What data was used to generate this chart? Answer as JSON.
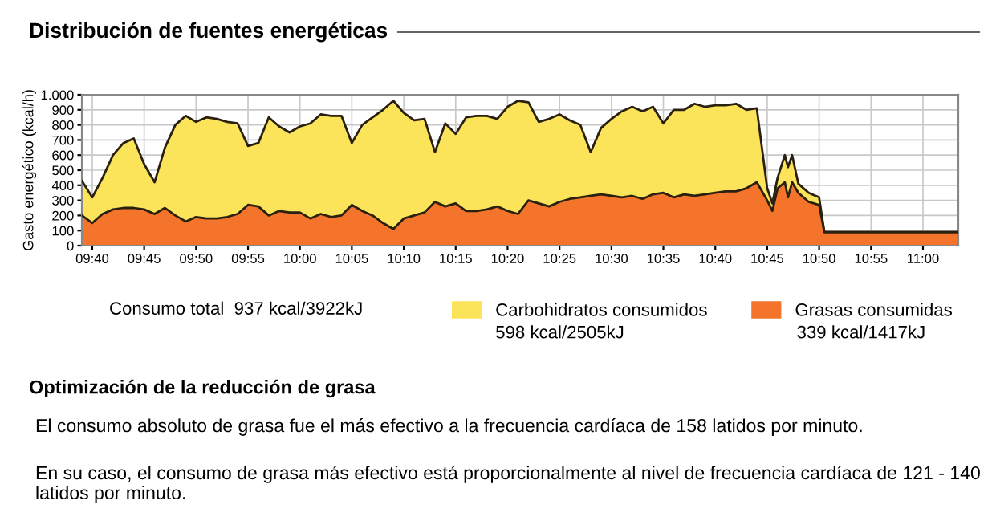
{
  "chart_data": {
    "type": "area",
    "stacked": true,
    "title": "Distribución de fuentes energéticas",
    "ylabel": "Gasto energético (kcal/h)",
    "x": [
      9.65,
      9.6667,
      9.6833,
      9.7,
      9.7167,
      9.7333,
      9.75,
      9.7667,
      9.7833,
      9.8,
      9.8167,
      9.8333,
      9.85,
      9.8667,
      9.8833,
      9.9,
      9.9167,
      9.9333,
      9.95,
      9.9667,
      9.9833,
      10.0,
      10.0167,
      10.0333,
      10.05,
      10.0667,
      10.0833,
      10.1,
      10.1167,
      10.1333,
      10.15,
      10.1667,
      10.1833,
      10.2,
      10.2167,
      10.2333,
      10.25,
      10.2667,
      10.2833,
      10.3,
      10.3167,
      10.3333,
      10.35,
      10.3667,
      10.3833,
      10.4,
      10.4167,
      10.4333,
      10.45,
      10.4667,
      10.4833,
      10.5,
      10.5167,
      10.5333,
      10.55,
      10.5667,
      10.5833,
      10.6,
      10.6167,
      10.6333,
      10.65,
      10.6667,
      10.6833,
      10.7,
      10.7167,
      10.7333,
      10.75,
      10.7583,
      10.7667,
      10.7783,
      10.7833,
      10.79,
      10.8,
      10.8167,
      10.8333,
      10.8417,
      10.85,
      11.0567
    ],
    "series": [
      {
        "name": "Grasas consumidas",
        "color": "#f4742b",
        "values": [
          200,
          150,
          210,
          240,
          250,
          250,
          240,
          210,
          250,
          200,
          160,
          190,
          180,
          180,
          190,
          210,
          270,
          260,
          200,
          230,
          220,
          220,
          180,
          210,
          190,
          200,
          270,
          230,
          200,
          150,
          110,
          180,
          200,
          220,
          290,
          260,
          280,
          230,
          230,
          240,
          260,
          230,
          210,
          300,
          280,
          260,
          290,
          310,
          320,
          330,
          340,
          330,
          320,
          330,
          310,
          340,
          350,
          320,
          340,
          330,
          340,
          350,
          360,
          360,
          380,
          420,
          300,
          230,
          380,
          420,
          320,
          420,
          350,
          290,
          270,
          90,
          90,
          90
        ]
      },
      {
        "name": "Carbohidratos consumidos",
        "color": "#fbe45a",
        "values": [
          230,
          170,
          240,
          360,
          430,
          460,
          300,
          210,
          400,
          600,
          700,
          630,
          670,
          660,
          630,
          600,
          390,
          420,
          650,
          560,
          530,
          570,
          630,
          660,
          670,
          660,
          410,
          570,
          650,
          750,
          850,
          700,
          630,
          620,
          330,
          550,
          460,
          620,
          630,
          620,
          580,
          690,
          750,
          650,
          540,
          580,
          580,
          520,
          480,
          290,
          440,
          510,
          570,
          590,
          580,
          580,
          460,
          580,
          560,
          610,
          580,
          580,
          570,
          580,
          520,
          490,
          80,
          50,
          70,
          180,
          200,
          180,
          60,
          60,
          50,
          0,
          0,
          0
        ]
      }
    ],
    "xlim": [
      9.65,
      11.0567
    ],
    "xticks": [
      {
        "value": 9.6667,
        "label": "09:40"
      },
      {
        "value": 9.75,
        "label": "09:45"
      },
      {
        "value": 9.8333,
        "label": "09:50"
      },
      {
        "value": 9.9167,
        "label": "09:55"
      },
      {
        "value": 10.0,
        "label": "10:00"
      },
      {
        "value": 10.0833,
        "label": "10:05"
      },
      {
        "value": 10.1667,
        "label": "10:10"
      },
      {
        "value": 10.25,
        "label": "10:15"
      },
      {
        "value": 10.3333,
        "label": "10:20"
      },
      {
        "value": 10.4167,
        "label": "10:25"
      },
      {
        "value": 10.5,
        "label": "10:30"
      },
      {
        "value": 10.5833,
        "label": "10:35"
      },
      {
        "value": 10.6667,
        "label": "10:40"
      },
      {
        "value": 10.75,
        "label": "10:45"
      },
      {
        "value": 10.8333,
        "label": "10:50"
      },
      {
        "value": 10.9167,
        "label": "10:55"
      },
      {
        "value": 11.0,
        "label": "11:00"
      }
    ],
    "ylim": [
      0,
      1000
    ],
    "yticks": [
      0,
      100,
      200,
      300,
      400,
      500,
      600,
      700,
      800,
      900,
      {
        "value": 1000,
        "label": "1.000"
      }
    ],
    "grid": true,
    "legend": "bottom",
    "annotations": [
      "Consumo total  937 kcal/3922kJ",
      "598 kcal/2505kJ",
      "339 kcal/1417kJ",
      "Optimización de la reducción de grasa",
      "El consumo absoluto de grasa fue el más efectivo a la frecuencia cardíaca de 158 latidos por minuto.",
      "En su caso, el consumo de grasa más efectivo está proporcionalmente al nivel de frecuencia cardíaca de 121 - 140 latidos por minuto."
    ]
  }
}
